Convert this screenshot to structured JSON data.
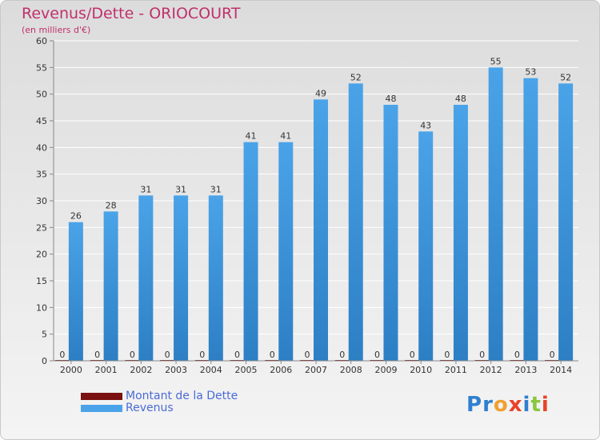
{
  "header": {
    "title": "Revenus/Dette - ORIOCOURT",
    "subtitle": "(en milliers d'€)"
  },
  "logo": {
    "letters": [
      "P",
      "r",
      "o",
      "x",
      "i",
      "t",
      "i"
    ],
    "colors": [
      "#2f7fd0",
      "#2f7fd0",
      "#f0a030",
      "#e8432a",
      "#2f7fd0",
      "#8cc63f",
      "#e8432a"
    ]
  },
  "colors": {
    "revenus": "#4aa3e8",
    "revenus_dark": "#2d7fc4",
    "dette": "#7a1010",
    "grid": "#ffffff",
    "legend_text": "#4a6ad6"
  },
  "chart_data": {
    "type": "bar",
    "title": "Revenus/Dette - ORIOCOURT",
    "ylabel": "(en milliers d'€)",
    "xlabel": "",
    "categories": [
      "2000",
      "2001",
      "2002",
      "2003",
      "2004",
      "2005",
      "2006",
      "2007",
      "2008",
      "2009",
      "2010",
      "2011",
      "2012",
      "2013",
      "2014"
    ],
    "series": [
      {
        "name": "Montant de la Dette",
        "values": [
          0,
          0,
          0,
          0,
          0,
          0,
          0,
          0,
          0,
          0,
          0,
          0,
          0,
          0,
          0
        ]
      },
      {
        "name": "Revenus",
        "values": [
          26,
          28,
          31,
          31,
          31,
          41,
          41,
          49,
          52,
          48,
          43,
          48,
          55,
          53,
          52
        ]
      }
    ],
    "ylim": [
      0,
      60
    ],
    "yticks": [
      "0",
      "5",
      "10",
      "15",
      "20",
      "25",
      "30",
      "35",
      "40",
      "45",
      "50",
      "55",
      "60"
    ],
    "grid": true,
    "legend": "bottom-left"
  }
}
